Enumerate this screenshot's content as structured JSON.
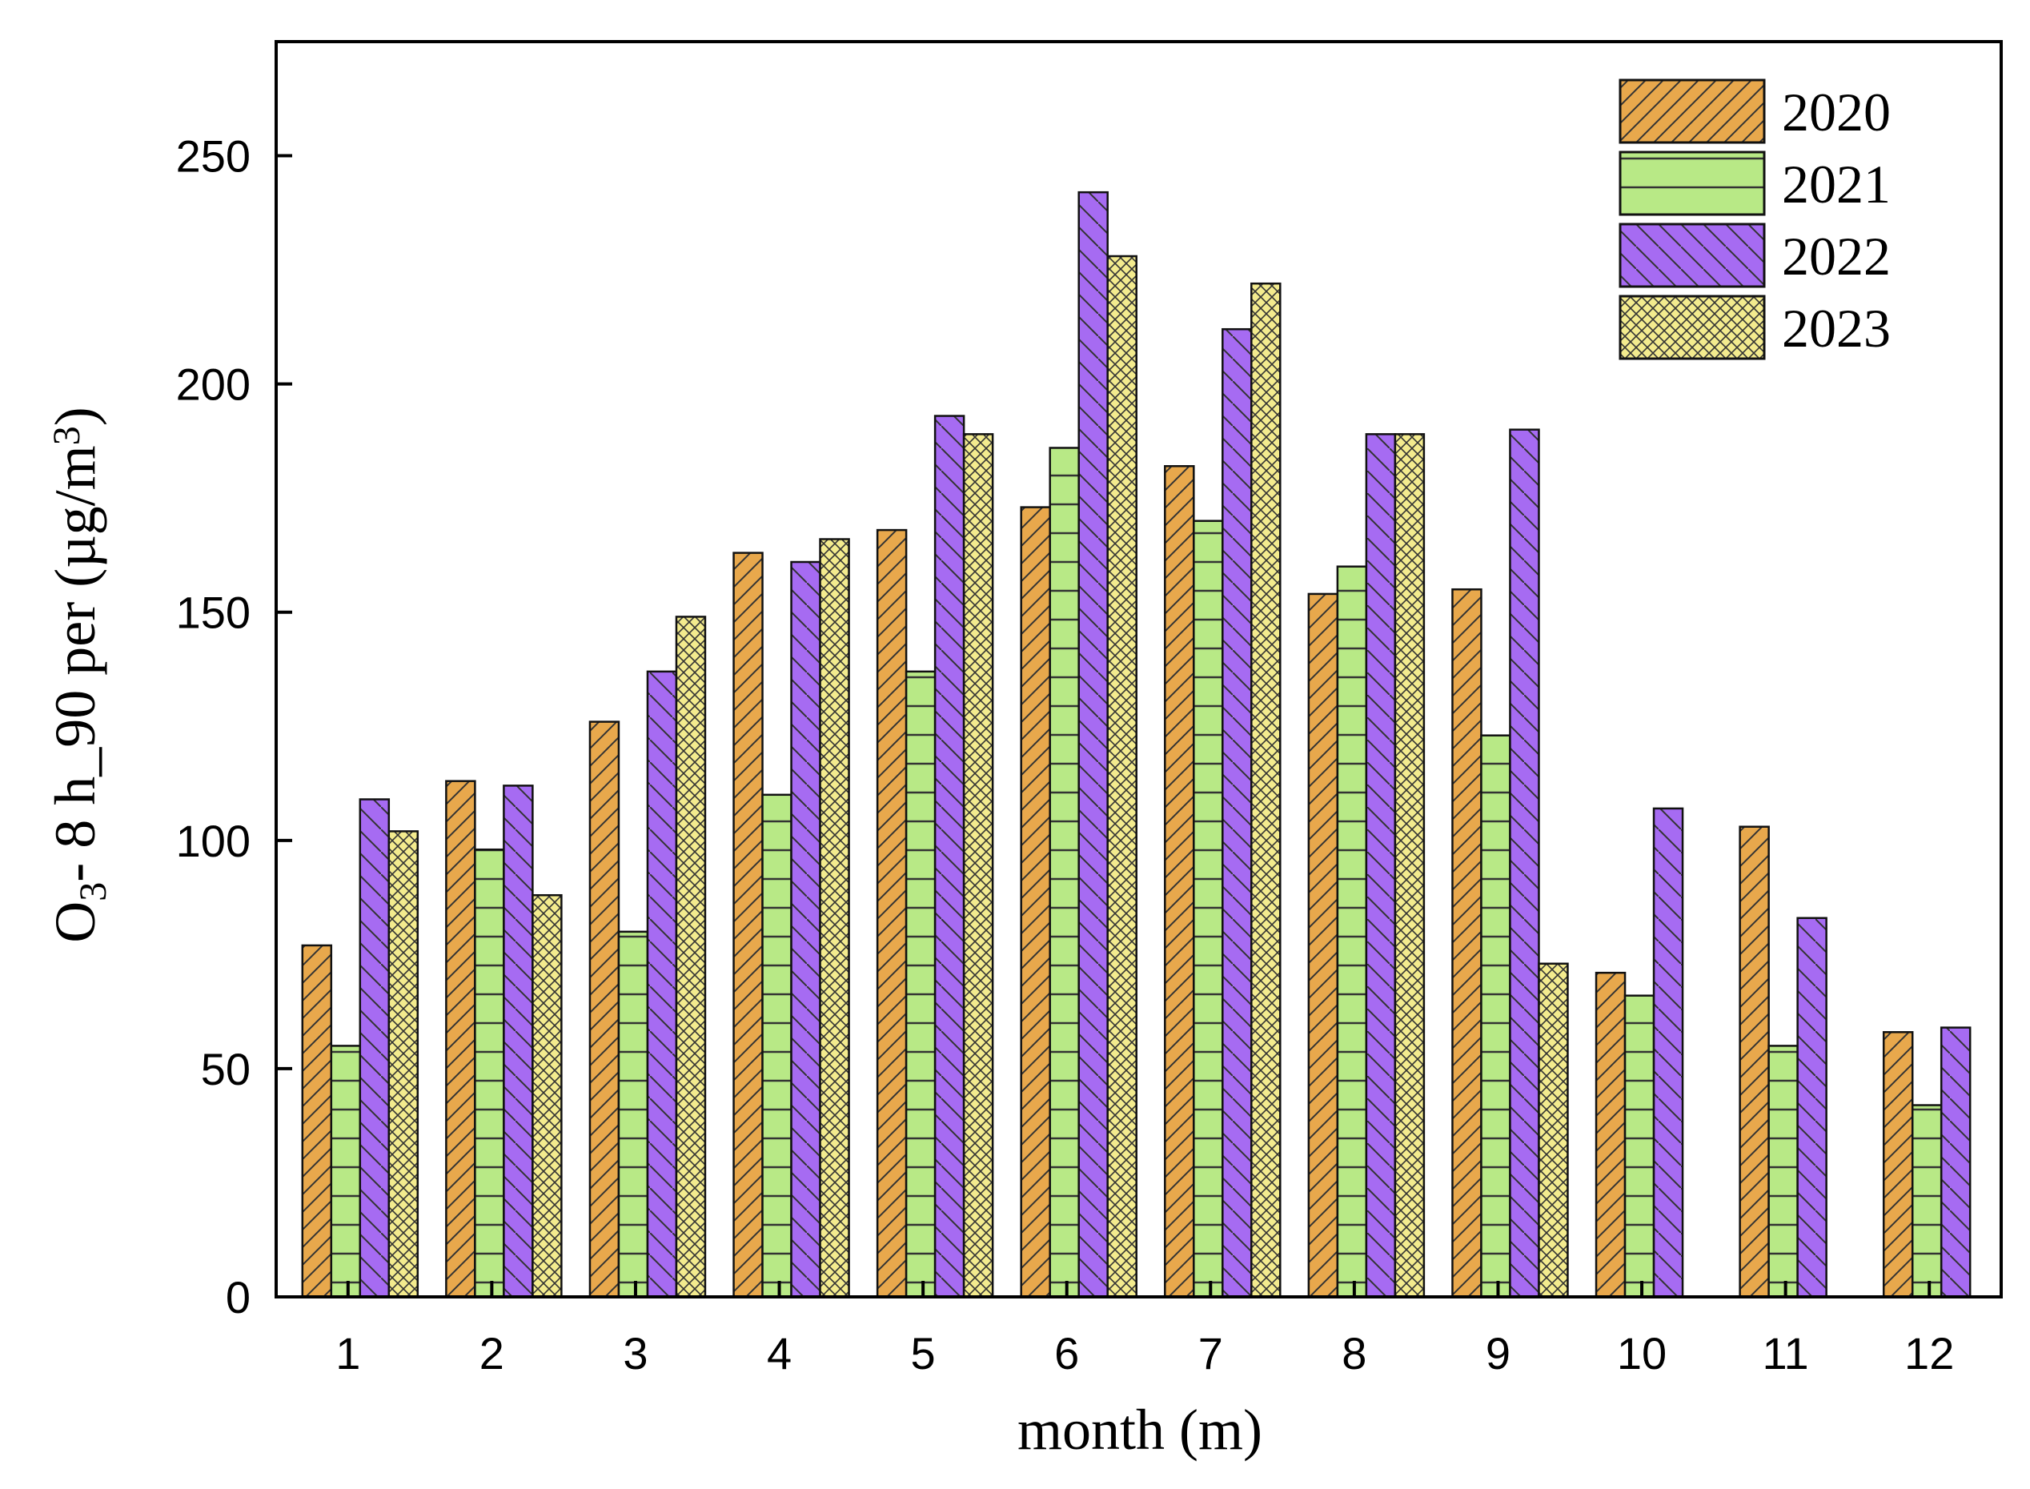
{
  "chart_data": {
    "type": "bar",
    "xlabel": "month (m)",
    "ylabel": {
      "parts": [
        {
          "text": "O",
          "style": "normal"
        },
        {
          "text": "3",
          "style": "sub"
        },
        {
          "text": "- 8 h_90 per (µg/m",
          "style": "normal"
        },
        {
          "text": "3",
          "style": "sup"
        },
        {
          "text": ")",
          "style": "normal"
        }
      ]
    },
    "categories": [
      "1",
      "2",
      "3",
      "4",
      "5",
      "6",
      "7",
      "8",
      "9",
      "10",
      "11",
      "12"
    ],
    "ylim": [
      0,
      275
    ],
    "yticks": [
      0,
      50,
      100,
      150,
      200,
      250
    ],
    "grid": false,
    "legend_position": "top-right",
    "series": [
      {
        "name": "2020",
        "color": "#E8A84C",
        "pattern": "forward-diagonal",
        "values": [
          77,
          113,
          126,
          163,
          168,
          173,
          182,
          154,
          155,
          71,
          103,
          58
        ]
      },
      {
        "name": "2021",
        "color": "#B8E986",
        "pattern": "horizontal",
        "values": [
          55,
          98,
          80,
          110,
          137,
          186,
          170,
          160,
          123,
          66,
          55,
          42
        ]
      },
      {
        "name": "2022",
        "color": "#A66BF2",
        "pattern": "back-diagonal",
        "values": [
          109,
          112,
          137,
          161,
          193,
          242,
          212,
          189,
          190,
          107,
          83,
          59
        ]
      },
      {
        "name": "2023",
        "color": "#F3EB8E",
        "pattern": "crosshatch",
        "values": [
          102,
          88,
          149,
          166,
          189,
          228,
          222,
          189,
          73,
          null,
          null,
          null
        ]
      }
    ]
  }
}
